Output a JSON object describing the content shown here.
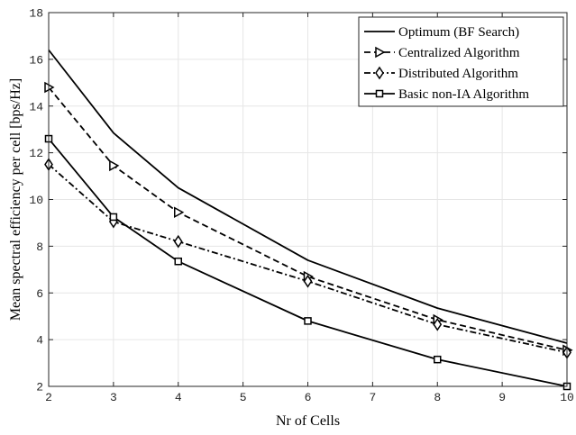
{
  "chart_data": {
    "type": "line",
    "title": "",
    "xlabel": "Nr of Cells",
    "ylabel": "Mean spectral efficiency per cell [bps/Hz]",
    "xlim": [
      2,
      10
    ],
    "ylim": [
      2,
      18
    ],
    "xticks": [
      2,
      3,
      4,
      5,
      6,
      7,
      8,
      9,
      10
    ],
    "yticks": [
      2,
      4,
      6,
      8,
      10,
      12,
      14,
      16,
      18
    ],
    "grid": true,
    "legend_position": "top-right",
    "x": [
      2,
      3,
      4,
      6,
      8,
      10
    ],
    "series": [
      {
        "name": "Optimum (BF Search)",
        "values": [
          16.4,
          12.85,
          10.5,
          7.4,
          5.35,
          3.85
        ],
        "line_style": "solid",
        "marker": "none",
        "color": "#000000"
      },
      {
        "name": "Centralized Algorithm",
        "values": [
          14.8,
          11.45,
          9.45,
          6.7,
          4.85,
          3.55
        ],
        "line_style": "dashed",
        "marker": "triangle-right",
        "color": "#000000"
      },
      {
        "name": "Distributed Algorithm",
        "values": [
          11.5,
          9.05,
          8.2,
          6.5,
          4.65,
          3.45
        ],
        "line_style": "dashdot",
        "marker": "diamond",
        "color": "#000000"
      },
      {
        "name": "Basic non-IA Algorithm",
        "values": [
          12.6,
          9.25,
          7.35,
          4.8,
          3.15,
          2.0
        ],
        "line_style": "solid",
        "marker": "square",
        "color": "#000000"
      }
    ]
  }
}
